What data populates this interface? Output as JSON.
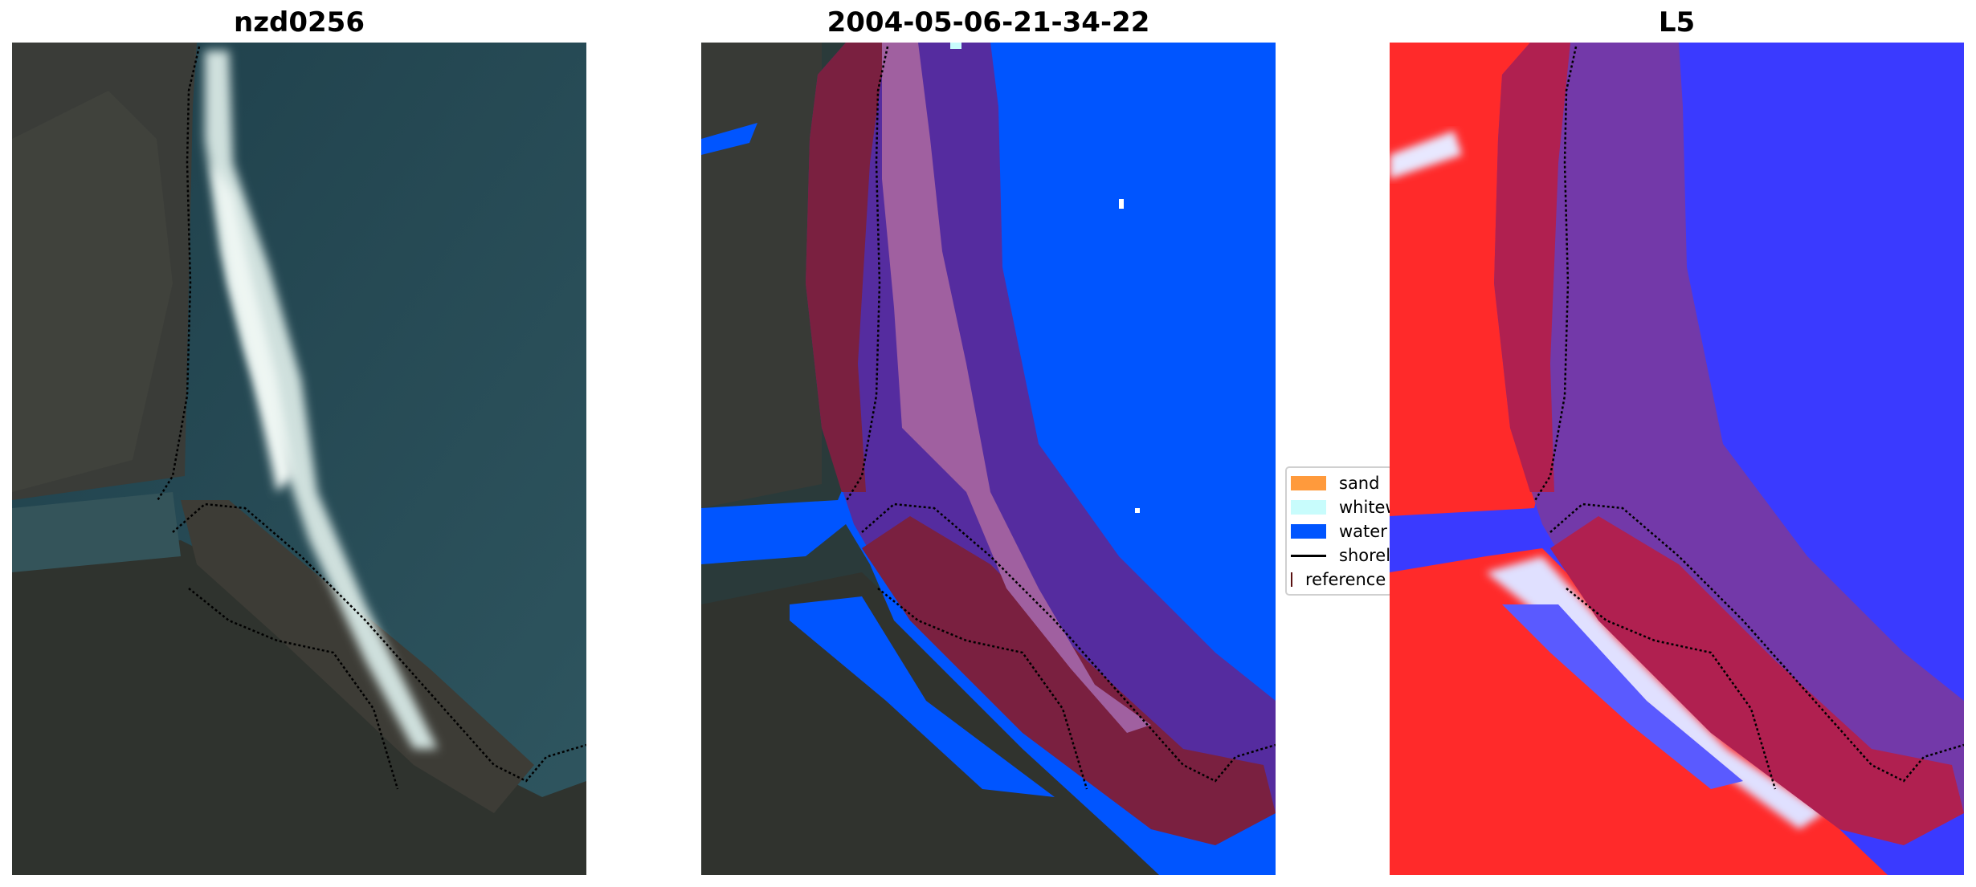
{
  "panels": [
    {
      "title": "nzd0256"
    },
    {
      "title": "2004-05-06-21-34-22"
    },
    {
      "title": "L5"
    }
  ],
  "legend": {
    "items": [
      {
        "label": "sand",
        "color": "#ff9a3c",
        "kind": "patch"
      },
      {
        "label": "whitewater",
        "color": "#c8fcfc",
        "kind": "patch"
      },
      {
        "label": "water",
        "color": "#0055ff",
        "kind": "patch"
      },
      {
        "label": "shoreline",
        "color": "#000000",
        "kind": "line"
      },
      {
        "label": "reference shoreline buffer",
        "color": "#8b2226",
        "kind": "patch"
      }
    ]
  },
  "colors": {
    "water_class": "#0055ff",
    "buffer": "#8b2226",
    "index_positive": "#ff0000",
    "index_negative": "#2a2aff"
  }
}
